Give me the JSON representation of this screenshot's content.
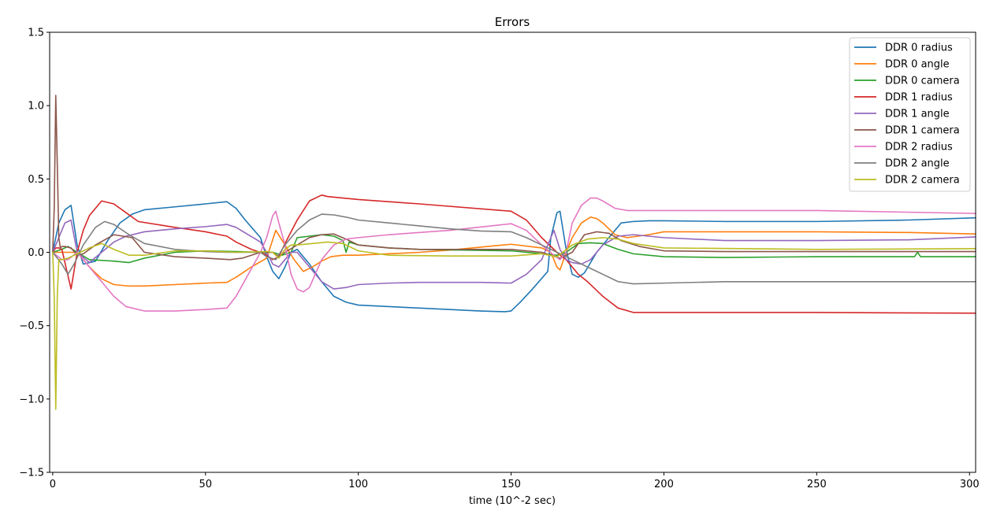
{
  "chart_data": {
    "type": "line",
    "title": "Errors",
    "xlabel": "time (10^-2 sec)",
    "ylabel": "",
    "xlim": [
      -1,
      302
    ],
    "ylim": [
      -1.5,
      1.5
    ],
    "xticks": [
      0,
      50,
      100,
      150,
      200,
      250,
      300
    ],
    "yticks": [
      -1.5,
      -1.0,
      -0.5,
      0.0,
      0.5,
      1.0,
      1.5
    ],
    "xtick_labels": [
      "0",
      "50",
      "100",
      "150",
      "200",
      "250",
      "300"
    ],
    "ytick_labels": [
      "−1.5",
      "−1.0",
      "−0.5",
      "0.0",
      "0.5",
      "1.0",
      "1.5"
    ],
    "grid": false,
    "legend_position": "top-right",
    "series": [
      {
        "name": "DDR 0 radius",
        "color": "#1f77b4",
        "x": [
          0,
          2,
          4,
          6,
          8,
          10,
          14,
          18,
          22,
          26,
          30,
          40,
          50,
          57,
          60,
          63,
          68,
          70,
          72,
          74,
          76,
          78,
          80,
          84,
          88,
          92,
          96,
          100,
          110,
          120,
          130,
          140,
          148,
          150,
          153,
          157,
          162,
          163,
          165,
          166,
          168,
          170,
          172,
          174,
          178,
          182,
          186,
          190,
          195,
          200,
          220,
          250,
          280,
          302
        ],
        "y": [
          0,
          0.2,
          0.29,
          0.32,
          0.05,
          -0.08,
          -0.06,
          0.08,
          0.2,
          0.26,
          0.29,
          0.31,
          0.33,
          0.345,
          0.3,
          0.22,
          0.1,
          -0.03,
          -0.13,
          -0.18,
          -0.1,
          0.0,
          0.02,
          -0.08,
          -0.2,
          -0.3,
          -0.34,
          -0.36,
          -0.37,
          -0.38,
          -0.39,
          -0.4,
          -0.405,
          -0.4,
          -0.34,
          -0.25,
          -0.13,
          0.1,
          0.27,
          0.28,
          0.02,
          -0.15,
          -0.17,
          -0.14,
          0.0,
          0.1,
          0.2,
          0.21,
          0.215,
          0.215,
          0.21,
          0.21,
          0.22,
          0.235
        ]
      },
      {
        "name": "DDR 0 angle",
        "color": "#ff7f0e",
        "x": [
          0,
          4,
          8,
          12,
          16,
          20,
          25,
          30,
          40,
          50,
          57,
          60,
          65,
          70,
          73,
          76,
          79,
          82,
          85,
          88,
          91,
          95,
          100,
          110,
          120,
          130,
          140,
          150,
          160,
          163,
          165,
          166,
          168,
          170,
          173,
          176,
          178,
          180,
          184,
          188,
          195,
          200,
          220,
          250,
          280,
          302
        ],
        "y": [
          0,
          0.0,
          0.0,
          -0.1,
          -0.18,
          -0.22,
          -0.23,
          -0.23,
          -0.22,
          -0.21,
          -0.205,
          -0.17,
          -0.1,
          -0.04,
          0.15,
          0.05,
          -0.05,
          -0.13,
          -0.1,
          -0.06,
          -0.03,
          -0.02,
          -0.02,
          -0.01,
          0.0,
          0.015,
          0.035,
          0.055,
          0.03,
          0.0,
          -0.1,
          -0.12,
          0.0,
          0.1,
          0.2,
          0.24,
          0.23,
          0.2,
          0.12,
          0.1,
          0.12,
          0.14,
          0.14,
          0.14,
          0.135,
          0.125
        ]
      },
      {
        "name": "DDR 0 camera",
        "color": "#2ca02c",
        "x": [
          0,
          3,
          5,
          8,
          12,
          20,
          25,
          30,
          40,
          50,
          60,
          68,
          72,
          75,
          78,
          80,
          84,
          88,
          92,
          95,
          96,
          97,
          100,
          110,
          120,
          150,
          165,
          168,
          172,
          176,
          180,
          185,
          190,
          200,
          220,
          250,
          282,
          283,
          284,
          302
        ],
        "y": [
          0,
          0.02,
          0.04,
          0.0,
          -0.05,
          -0.06,
          -0.07,
          -0.04,
          0.0,
          0.01,
          0.005,
          0.0,
          0.0,
          -0.02,
          0.0,
          0.1,
          0.11,
          0.12,
          0.11,
          0.08,
          0.0,
          0.07,
          0.05,
          0.03,
          0.02,
          0.01,
          -0.02,
          0.0,
          0.06,
          0.065,
          0.06,
          0.02,
          -0.01,
          -0.03,
          -0.035,
          -0.03,
          -0.03,
          0.0,
          -0.03,
          -0.03
        ]
      },
      {
        "name": "DDR 1 radius",
        "color": "#d62728",
        "x": [
          0,
          1,
          2,
          3,
          6,
          8,
          10,
          12,
          16,
          20,
          24,
          28,
          40,
          50,
          57,
          60,
          65,
          68,
          70,
          72,
          74,
          76,
          80,
          84,
          88,
          90,
          95,
          100,
          120,
          150,
          155,
          160,
          165,
          166,
          168,
          170,
          172,
          175,
          180,
          185,
          190,
          200,
          250,
          302
        ],
        "y": [
          0,
          0.03,
          0.03,
          0.02,
          -0.25,
          0.0,
          0.15,
          0.25,
          0.35,
          0.33,
          0.27,
          0.21,
          0.17,
          0.14,
          0.11,
          0.07,
          0.02,
          0.0,
          -0.02,
          -0.05,
          -0.03,
          0.06,
          0.22,
          0.35,
          0.39,
          0.38,
          0.37,
          0.36,
          0.33,
          0.28,
          0.22,
          0.1,
          0.0,
          -0.02,
          -0.05,
          -0.1,
          -0.15,
          -0.2,
          -0.3,
          -0.38,
          -0.41,
          -0.41,
          -0.41,
          -0.415
        ]
      },
      {
        "name": "DDR 1 angle",
        "color": "#9467bd",
        "x": [
          0,
          2,
          4,
          6,
          8,
          12,
          16,
          20,
          24,
          30,
          40,
          50,
          57,
          60,
          64,
          68,
          70,
          72,
          74,
          76,
          78,
          80,
          84,
          88,
          92,
          96,
          100,
          110,
          120,
          140,
          150,
          155,
          160,
          164,
          166,
          168,
          170,
          173,
          176,
          180,
          185,
          190,
          200,
          220,
          250,
          280,
          302
        ],
        "y": [
          0,
          0.1,
          0.2,
          0.22,
          0.0,
          -0.07,
          0.0,
          0.07,
          0.11,
          0.14,
          0.16,
          0.175,
          0.19,
          0.17,
          0.12,
          0.07,
          0.0,
          -0.08,
          -0.1,
          -0.05,
          0.0,
          0.0,
          -0.1,
          -0.2,
          -0.25,
          -0.24,
          -0.22,
          -0.21,
          -0.205,
          -0.205,
          -0.21,
          -0.15,
          -0.05,
          0.15,
          0.02,
          -0.05,
          -0.07,
          -0.08,
          -0.05,
          0.05,
          0.11,
          0.12,
          0.1,
          0.08,
          0.08,
          0.085,
          0.105
        ]
      },
      {
        "name": "DDR 1 camera",
        "color": "#8c564b",
        "x": [
          0,
          0.5,
          1,
          1.5,
          2,
          2.5,
          3,
          4,
          6,
          8,
          10,
          14,
          20,
          26,
          30,
          40,
          50,
          58,
          62,
          68,
          72,
          74,
          76,
          80,
          84,
          88,
          92,
          96,
          100,
          110,
          120,
          150,
          160,
          166,
          170,
          174,
          178,
          182,
          186,
          192,
          200,
          220,
          250,
          302
        ],
        "y": [
          0,
          0.3,
          1.07,
          0.6,
          0.1,
          0.03,
          0.04,
          0.04,
          0.03,
          -0.02,
          -0.01,
          0.05,
          0.12,
          0.1,
          0.0,
          -0.03,
          -0.04,
          -0.05,
          -0.04,
          0.0,
          0.0,
          -0.03,
          0.0,
          0.05,
          0.1,
          0.12,
          0.125,
          0.09,
          0.05,
          0.03,
          0.02,
          0.02,
          0.0,
          -0.04,
          0.0,
          0.12,
          0.14,
          0.13,
          0.08,
          0.04,
          0.01,
          0.005,
          0.005,
          0.005
        ]
      },
      {
        "name": "DDR 2 radius",
        "color": "#e377c2",
        "x": [
          0,
          3,
          5,
          8,
          12,
          16,
          20,
          24,
          30,
          40,
          50,
          57,
          60,
          64,
          68,
          70,
          72,
          73,
          74,
          76,
          78,
          80,
          82,
          84,
          88,
          92,
          96,
          100,
          110,
          130,
          150,
          155,
          160,
          164,
          166,
          168,
          170,
          173,
          176,
          178,
          180,
          184,
          188,
          200,
          250,
          302
        ],
        "y": [
          0,
          -0.05,
          -0.05,
          0.0,
          -0.1,
          -0.2,
          -0.3,
          -0.37,
          -0.4,
          -0.4,
          -0.39,
          -0.38,
          -0.3,
          -0.15,
          0.0,
          0.1,
          0.25,
          0.28,
          0.2,
          0.05,
          -0.15,
          -0.25,
          -0.27,
          -0.24,
          -0.05,
          0.05,
          0.09,
          0.1,
          0.12,
          0.15,
          0.195,
          0.15,
          0.05,
          -0.02,
          -0.05,
          0.0,
          0.2,
          0.32,
          0.37,
          0.37,
          0.35,
          0.3,
          0.285,
          0.285,
          0.285,
          0.265
        ]
      },
      {
        "name": "DDR 2 angle",
        "color": "#7f7f7f",
        "x": [
          0,
          3,
          5,
          7,
          10,
          14,
          17,
          20,
          25,
          30,
          40,
          50,
          57,
          60,
          65,
          68,
          70,
          73,
          76,
          80,
          84,
          88,
          92,
          96,
          100,
          110,
          120,
          130,
          140,
          150,
          155,
          160,
          165,
          170,
          175,
          180,
          185,
          190,
          200,
          220,
          250,
          302
        ],
        "y": [
          0,
          -0.08,
          -0.15,
          -0.08,
          0.05,
          0.17,
          0.21,
          0.19,
          0.12,
          0.06,
          0.02,
          0.005,
          0.0,
          0.0,
          0.0,
          0.0,
          -0.03,
          -0.05,
          0.05,
          0.15,
          0.22,
          0.26,
          0.255,
          0.24,
          0.22,
          0.2,
          0.18,
          0.16,
          0.145,
          0.14,
          0.1,
          0.05,
          0.0,
          -0.05,
          -0.1,
          -0.15,
          -0.2,
          -0.215,
          -0.21,
          -0.2,
          -0.2,
          -0.2
        ]
      },
      {
        "name": "DDR 2 camera",
        "color": "#bcbd22",
        "x": [
          0,
          0.5,
          1,
          1.5,
          2,
          3,
          5,
          8,
          12,
          16,
          20,
          25,
          30,
          40,
          50,
          60,
          70,
          72,
          74,
          76,
          78,
          80,
          85,
          90,
          95,
          100,
          110,
          130,
          150,
          160,
          165,
          170,
          175,
          180,
          185,
          190,
          200,
          250,
          302
        ],
        "y": [
          0,
          -0.3,
          -1.07,
          -0.3,
          -0.05,
          -0.05,
          -0.04,
          -0.01,
          0.03,
          0.06,
          0.02,
          -0.02,
          -0.02,
          0.01,
          0.01,
          0.0,
          0.005,
          0.0,
          -0.04,
          0.02,
          0.05,
          0.05,
          0.06,
          0.07,
          0.06,
          0.01,
          -0.02,
          -0.025,
          -0.025,
          -0.01,
          -0.03,
          0.05,
          0.09,
          0.1,
          0.09,
          0.06,
          0.03,
          0.02,
          0.025
        ]
      }
    ]
  }
}
